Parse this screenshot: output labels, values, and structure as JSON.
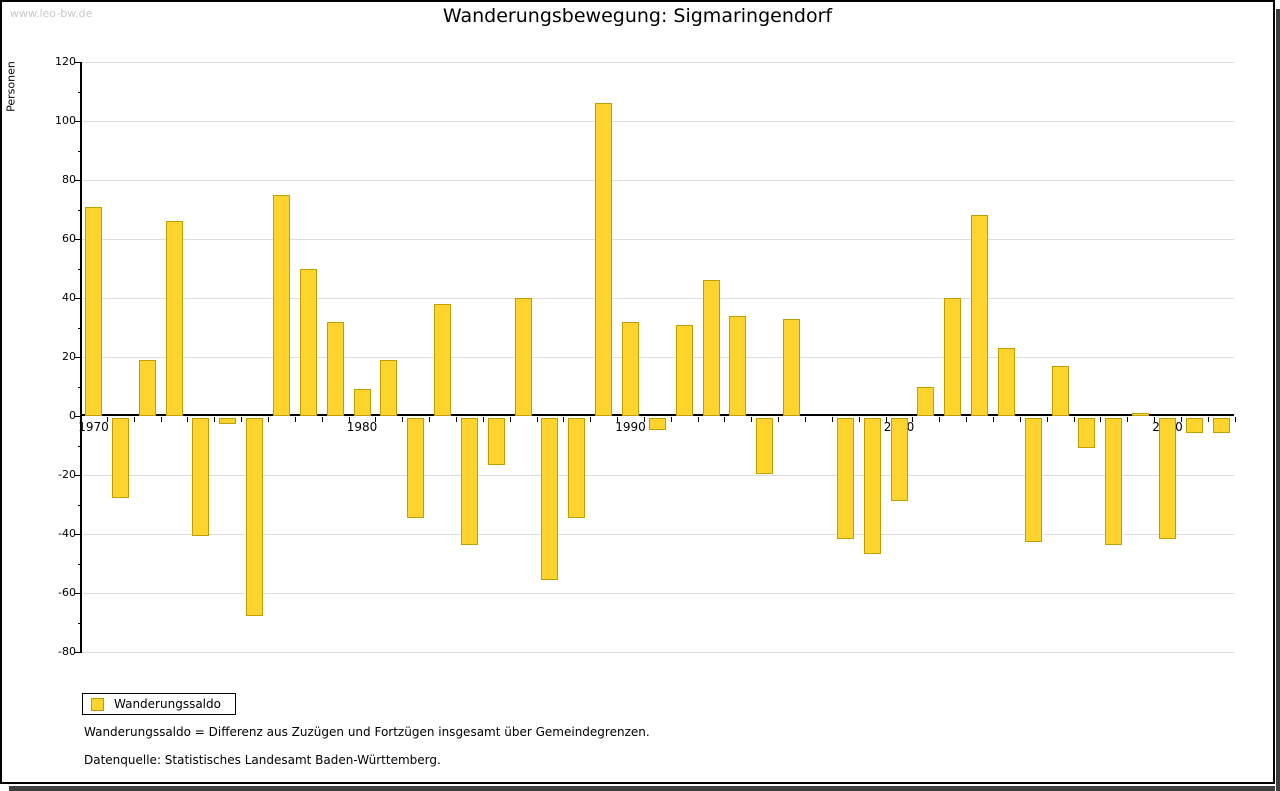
{
  "watermark": "www.leo-bw.de",
  "header": {
    "title": "Wanderungsbewegung: Sigmaringendorf"
  },
  "legend": {
    "label": "Wanderungssaldo"
  },
  "footnotes": {
    "definition": "Wanderungssaldo = Differenz aus Zuzügen und Fortzügen insgesamt über Gemeindegrenzen.",
    "source": "Datenquelle: Statistisches Landesamt Baden-Württemberg."
  },
  "chart_data": {
    "type": "bar",
    "title": "Wanderungsbewegung: Sigmaringendorf",
    "xlabel": "",
    "ylabel": "Personen",
    "ylim": [
      -80,
      120
    ],
    "ytick_step": 20,
    "grid": true,
    "legend_position": "bottom-left",
    "bar_color": "#fcd42d",
    "bar_border_color": "#bfa000",
    "series": [
      {
        "name": "Wanderungssaldo",
        "x": [
          1970,
          1971,
          1972,
          1973,
          1974,
          1975,
          1976,
          1977,
          1978,
          1979,
          1980,
          1981,
          1982,
          1983,
          1984,
          1985,
          1986,
          1987,
          1988,
          1989,
          1990,
          1991,
          1992,
          1993,
          1994,
          1995,
          1996,
          1997,
          1998,
          1999,
          2000,
          2001,
          2002,
          2003,
          2004,
          2005,
          2006,
          2007,
          2008,
          2009,
          2010,
          2011,
          2012
        ],
        "values": [
          71,
          -27,
          19,
          66,
          -40,
          -2,
          -67,
          75,
          50,
          32,
          9,
          19,
          -34,
          38,
          -43,
          -16,
          40,
          -55,
          -34,
          106,
          32,
          -4,
          31,
          46,
          34,
          -19,
          33,
          0,
          -41,
          -46,
          -28,
          10,
          40,
          68,
          23,
          -42,
          17,
          -10,
          -43,
          1,
          -41,
          -5,
          -5
        ]
      }
    ],
    "x_axis_labels": [
      "1970",
      "1980",
      "1990",
      "2000",
      "2010"
    ],
    "y_axis_labels": [
      "120",
      "100",
      "80",
      "60",
      "40",
      "20",
      "0",
      "-20",
      "-40",
      "-60",
      "-80"
    ]
  }
}
